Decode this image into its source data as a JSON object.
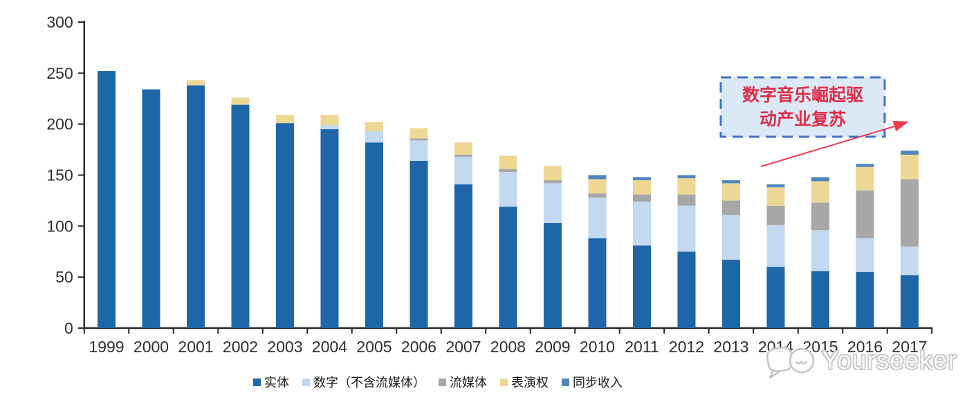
{
  "chart_data": {
    "type": "bar",
    "stacked": true,
    "title": "",
    "xlabel": "",
    "ylabel": "",
    "ylim": [
      0,
      300
    ],
    "yticks": [
      "0",
      "50",
      "100",
      "150",
      "200",
      "250",
      "300"
    ],
    "grid": false,
    "legend_position": "bottom",
    "categories": [
      "1999",
      "2000",
      "2001",
      "2002",
      "2003",
      "2004",
      "2005",
      "2006",
      "2007",
      "2008",
      "2009",
      "2010",
      "2011",
      "2012",
      "2013",
      "2014",
      "2015",
      "2016",
      "2017"
    ],
    "series": [
      {
        "key": "physical",
        "name": "实体",
        "color": "#1F66A8",
        "values": [
          252,
          234,
          238,
          219,
          201,
          195,
          182,
          164,
          141,
          119,
          103,
          88,
          81,
          75,
          67,
          60,
          56,
          55,
          52
        ]
      },
      {
        "key": "digital-ex-streaming",
        "name": "数字（不含流媒体）",
        "color": "#C2D9EF",
        "values": [
          0,
          0,
          0,
          0,
          0,
          4,
          11,
          20,
          27,
          34,
          39,
          40,
          43,
          45,
          44,
          41,
          40,
          33,
          28
        ]
      },
      {
        "key": "streaming",
        "name": "流媒体",
        "color": "#A7A7A7",
        "values": [
          0,
          0,
          0,
          0,
          0,
          0,
          0,
          2,
          2,
          3,
          3,
          4,
          7,
          11,
          14,
          19,
          27,
          47,
          66
        ]
      },
      {
        "key": "performance-rights",
        "name": "表演权",
        "color": "#EDD795",
        "values": [
          0,
          0,
          5,
          7,
          8,
          10,
          9,
          10,
          12,
          13,
          14,
          14,
          14,
          16,
          17,
          18,
          21,
          23,
          24
        ]
      },
      {
        "key": "sync-revenue",
        "name": "同步收入",
        "color": "#4E85C0",
        "values": [
          0,
          0,
          0,
          0,
          0,
          0,
          0,
          0,
          0,
          0,
          0,
          4,
          3,
          3,
          3,
          3,
          4,
          3,
          4
        ]
      }
    ]
  },
  "annotation": {
    "line1": "数字音乐崛起驱",
    "line2": "动产业复苏",
    "text_color": "#E02E48",
    "border_color": "#4472C4",
    "fill_color": "#DBE8F6",
    "arrow_color": "#ED3B4E"
  },
  "axis": {
    "line_color": "#262626"
  },
  "watermark": {
    "text": "Yourseeker"
  }
}
